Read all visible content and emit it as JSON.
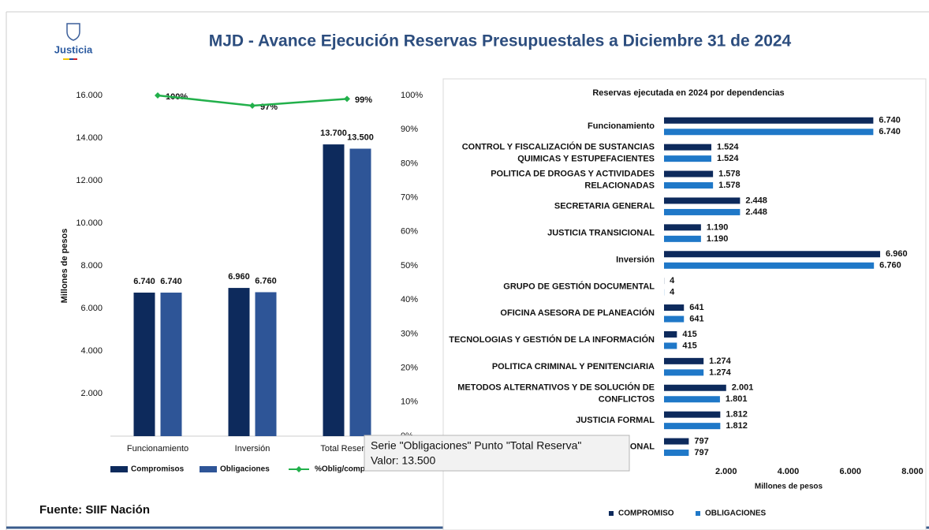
{
  "header": {
    "logo": "Justicia",
    "title": "MJD - Avance Ejecución Reservas Presupuestales a Diciembre 31 de 2024"
  },
  "chart_data": [
    {
      "type": "bar",
      "y_label": "Millones de pesos",
      "categories": [
        "Funcionamiento",
        "Inversión",
        "Total Reserva"
      ],
      "series": [
        {
          "name": "Compromisos",
          "color": "#0d2a5c",
          "values": [
            6740,
            6960,
            13700
          ],
          "value_labels": [
            "6.740",
            "6.960",
            "13.700"
          ]
        },
        {
          "name": "Obligaciones",
          "color": "#2e5597",
          "values": [
            6740,
            6760,
            13500
          ],
          "value_labels": [
            "6.740",
            "6.760",
            "13.500"
          ]
        },
        {
          "name": "%Oblig/comp",
          "type": "line",
          "axis": "y2",
          "color": "#22b04b",
          "values": [
            100,
            97,
            99
          ],
          "value_labels": [
            "100%",
            "97%",
            "99%"
          ]
        }
      ],
      "ylim": [
        0,
        16000
      ],
      "yticks": [
        {
          "value": 2000,
          "label": "2.000"
        },
        {
          "value": 4000,
          "label": "4.000"
        },
        {
          "value": 6000,
          "label": "6.000"
        },
        {
          "value": 8000,
          "label": "8.000"
        },
        {
          "value": 10000,
          "label": "10.000"
        },
        {
          "value": 12000,
          "label": "12.000"
        },
        {
          "value": 14000,
          "label": "14.000"
        },
        {
          "value": 16000,
          "label": "16.000"
        }
      ],
      "y2lim": [
        0,
        100
      ],
      "y2ticks": [
        {
          "value": 0,
          "label": "0%"
        },
        {
          "value": 10,
          "label": "10%"
        },
        {
          "value": 20,
          "label": "20%"
        },
        {
          "value": 30,
          "label": "30%"
        },
        {
          "value": 40,
          "label": "40%"
        },
        {
          "value": 50,
          "label": "50%"
        },
        {
          "value": 60,
          "label": "60%"
        },
        {
          "value": 70,
          "label": "70%"
        },
        {
          "value": 80,
          "label": "80%"
        },
        {
          "value": 90,
          "label": "90%"
        },
        {
          "value": 100,
          "label": "100%"
        }
      ]
    },
    {
      "type": "barh",
      "title": "Reservas ejecutada en 2024 por dependencias",
      "x_label": "Millones de pesos",
      "categories": [
        "Funcionamiento",
        "CONTROL Y FISCALIZACIÓN DE SUSTANCIAS QUIMICAS Y ESTUPEFACIENTES",
        "POLITICA DE DROGAS Y ACTIVIDADES RELACIONADAS",
        "SECRETARIA GENERAL",
        "JUSTICIA TRANSICIONAL",
        "Inversión",
        "GRUPO DE GESTIÓN DOCUMENTAL",
        "OFICINA ASESORA DE PLANEACIÓN",
        "TECNOLOGIAS Y GESTIÓN DE LA INFORMACIÓN",
        "POLITICA CRIMINAL Y PENITENCIARIA",
        "METODOS ALTERNATIVOS Y DE SOLUCIÓN DE CONFLICTOS",
        "JUSTICIA FORMAL",
        "ONAL"
      ],
      "series": [
        {
          "name": "COMPROMISO",
          "color": "#0d2a5c",
          "values": [
            6740,
            1524,
            1578,
            2448,
            1190,
            6960,
            4,
            641,
            415,
            1274,
            2001,
            1812,
            797
          ],
          "value_labels": [
            "6.740",
            "1.524",
            "1.578",
            "2.448",
            "1.190",
            "6.960",
            "4",
            "641",
            "415",
            "1.274",
            "2.001",
            "1.812",
            "797"
          ]
        },
        {
          "name": "OBLIGACIONES",
          "color": "#1f78c8",
          "values": [
            6740,
            1524,
            1578,
            2448,
            1190,
            6760,
            4,
            641,
            415,
            1274,
            1801,
            1812,
            797
          ],
          "value_labels": [
            "6.740",
            "1.524",
            "1.578",
            "2.448",
            "1.190",
            "6.760",
            "4",
            "641",
            "415",
            "1.274",
            "1.801",
            "1.812",
            "797"
          ]
        }
      ],
      "xlim": [
        0,
        8000
      ],
      "xticks": [
        {
          "value": 2000,
          "label": "2.000"
        },
        {
          "value": 4000,
          "label": "4.000"
        },
        {
          "value": 6000,
          "label": "6.000"
        },
        {
          "value": 8000,
          "label": "8.000"
        }
      ]
    }
  ],
  "footer": {
    "source": "Fuente: SIIF Nación"
  },
  "tooltip": {
    "lines": [
      "Serie \"Obligaciones\" Punto \"Total Reserva\"",
      "Valor: 13.500"
    ]
  }
}
